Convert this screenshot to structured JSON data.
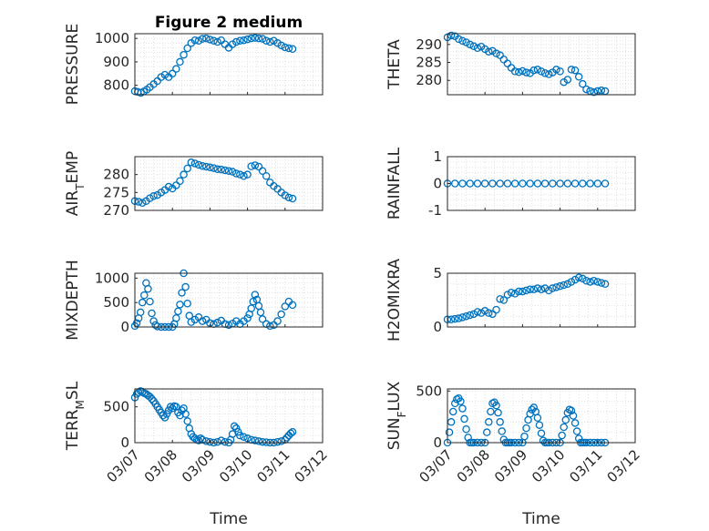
{
  "figure": {
    "title": "Figure 2 medium",
    "xlabel": "Time",
    "marker_color": "#0072BD"
  },
  "chart_data": [
    {
      "type": "scatter",
      "ylabel": "PRESSURE",
      "ylim": [
        760,
        1020
      ],
      "yticks": [
        800,
        900,
        1000
      ],
      "xlim": [
        "03/07",
        "03/12"
      ],
      "x": [
        0.0,
        0.08,
        0.16,
        0.24,
        0.32,
        0.4,
        0.5,
        0.6,
        0.7,
        0.8,
        0.9,
        1.0,
        1.1,
        1.2,
        1.3,
        1.4,
        1.5,
        1.6,
        1.7,
        1.8,
        1.9,
        2.0,
        2.1,
        2.2,
        2.3,
        2.4,
        2.5,
        2.6,
        2.7,
        2.8,
        2.9,
        3.0,
        3.1,
        3.2,
        3.3,
        3.4,
        3.5,
        3.6,
        3.7,
        3.8,
        3.9,
        4.0,
        4.1,
        4.2
      ],
      "y": [
        775,
        772,
        768,
        774,
        782,
        792,
        805,
        818,
        835,
        845,
        835,
        850,
        870,
        900,
        930,
        958,
        980,
        992,
        990,
        998,
        1000,
        995,
        990,
        985,
        992,
        975,
        960,
        975,
        985,
        990,
        992,
        996,
        1000,
        1002,
        1000,
        998,
        990,
        985,
        990,
        980,
        970,
        962,
        958,
        955
      ]
    },
    {
      "type": "scatter",
      "ylabel": "THETA",
      "ylim": [
        276,
        293
      ],
      "yticks": [
        280,
        285,
        290
      ],
      "xlim": [
        "03/07",
        "03/12"
      ],
      "x": [
        0.0,
        0.1,
        0.2,
        0.3,
        0.4,
        0.5,
        0.6,
        0.7,
        0.8,
        0.9,
        1.0,
        1.1,
        1.2,
        1.3,
        1.4,
        1.5,
        1.6,
        1.7,
        1.8,
        1.9,
        2.0,
        2.1,
        2.2,
        2.3,
        2.4,
        2.5,
        2.6,
        2.7,
        2.8,
        2.9,
        3.0,
        3.1,
        3.2,
        3.3,
        3.4,
        3.5,
        3.6,
        3.7,
        3.8,
        3.9,
        4.0,
        4.1,
        4.2
      ],
      "y": [
        292,
        292.5,
        292.3,
        291.5,
        291,
        290.6,
        290,
        289.5,
        289,
        289.4,
        288.7,
        288,
        288.2,
        287.5,
        287,
        285.8,
        284.7,
        283.5,
        282.5,
        282.3,
        282.6,
        282.2,
        282,
        282.8,
        283,
        282.5,
        282,
        281.7,
        282.2,
        283,
        282.5,
        279.5,
        280.2,
        283,
        282.8,
        281,
        279,
        277.5,
        277,
        276.7,
        277,
        277.2,
        277
      ]
    },
    {
      "type": "scatter",
      "ylabel": "AIR_TEMP",
      "ylim": [
        270,
        285
      ],
      "yticks": [
        270,
        275,
        280
      ],
      "xlim": [
        "03/07",
        "03/12"
      ],
      "x": [
        0.0,
        0.1,
        0.2,
        0.3,
        0.4,
        0.5,
        0.6,
        0.7,
        0.8,
        0.9,
        1.0,
        1.1,
        1.2,
        1.3,
        1.4,
        1.5,
        1.6,
        1.7,
        1.8,
        1.9,
        2.0,
        2.1,
        2.2,
        2.3,
        2.4,
        2.5,
        2.6,
        2.7,
        2.8,
        2.9,
        3.0,
        3.1,
        3.2,
        3.3,
        3.4,
        3.5,
        3.6,
        3.7,
        3.8,
        3.9,
        4.0,
        4.1,
        4.2
      ],
      "y": [
        272.6,
        272.4,
        272.1,
        272.6,
        273.4,
        274,
        274.3,
        275,
        275.7,
        276.6,
        276.1,
        277,
        278.2,
        280,
        281.7,
        283.4,
        283.1,
        282.7,
        282.4,
        282.2,
        282,
        281.8,
        281.5,
        281.4,
        281.2,
        281,
        280.8,
        280.3,
        280,
        279.6,
        280,
        282.3,
        282.6,
        282.2,
        281,
        279.6,
        277.8,
        276.8,
        276,
        275,
        274.2,
        273.6,
        273.3
      ]
    },
    {
      "type": "scatter",
      "ylabel": "RAINFALL",
      "ylim": [
        -1,
        1
      ],
      "yticks": [
        -1,
        0,
        1
      ],
      "xlim": [
        "03/07",
        "03/12"
      ],
      "x": [
        0.0,
        0.2,
        0.4,
        0.6,
        0.8,
        1.0,
        1.2,
        1.4,
        1.6,
        1.8,
        2.0,
        2.2,
        2.4,
        2.6,
        2.8,
        3.0,
        3.2,
        3.4,
        3.6,
        3.8,
        4.0,
        4.2
      ],
      "y": [
        0,
        0,
        0,
        0,
        0,
        0,
        0,
        0,
        0,
        0,
        0,
        0,
        0,
        0,
        0,
        0,
        0,
        0,
        0,
        0,
        0,
        0
      ]
    },
    {
      "type": "scatter",
      "ylabel": "MIXDEPTH",
      "ylim": [
        0,
        1100
      ],
      "yticks": [
        0,
        500,
        1000
      ],
      "xlim": [
        "03/07",
        "03/12"
      ],
      "x": [
        0.0,
        0.05,
        0.1,
        0.15,
        0.2,
        0.25,
        0.3,
        0.35,
        0.4,
        0.45,
        0.5,
        0.55,
        0.6,
        0.7,
        0.8,
        0.9,
        1.0,
        1.05,
        1.1,
        1.15,
        1.2,
        1.25,
        1.3,
        1.35,
        1.4,
        1.45,
        1.5,
        1.6,
        1.7,
        1.8,
        1.9,
        2.0,
        2.1,
        2.2,
        2.3,
        2.4,
        2.5,
        2.6,
        2.7,
        2.8,
        2.9,
        3.0,
        3.05,
        3.1,
        3.15,
        3.2,
        3.25,
        3.3,
        3.35,
        3.4,
        3.5,
        3.6,
        3.7,
        3.8,
        3.9,
        4.0,
        4.1,
        4.2
      ],
      "y": [
        20,
        80,
        180,
        300,
        500,
        650,
        900,
        780,
        520,
        280,
        120,
        40,
        10,
        0,
        0,
        0,
        0,
        60,
        180,
        320,
        460,
        700,
        1100,
        820,
        480,
        230,
        100,
        150,
        200,
        120,
        150,
        80,
        60,
        90,
        130,
        60,
        40,
        70,
        120,
        60,
        120,
        180,
        260,
        380,
        520,
        660,
        560,
        430,
        300,
        160,
        60,
        20,
        40,
        120,
        260,
        420,
        520,
        450
      ]
    },
    {
      "type": "scatter",
      "ylabel": "H2OMIXRA",
      "ylim": [
        0,
        5
      ],
      "yticks": [
        0,
        5
      ],
      "xlim": [
        "03/07",
        "03/12"
      ],
      "x": [
        0.0,
        0.1,
        0.2,
        0.3,
        0.4,
        0.5,
        0.6,
        0.7,
        0.8,
        0.9,
        1.0,
        1.1,
        1.2,
        1.3,
        1.4,
        1.5,
        1.6,
        1.7,
        1.8,
        1.9,
        2.0,
        2.1,
        2.2,
        2.3,
        2.4,
        2.5,
        2.6,
        2.7,
        2.8,
        2.9,
        3.0,
        3.1,
        3.2,
        3.3,
        3.4,
        3.5,
        3.6,
        3.7,
        3.8,
        3.9,
        4.0,
        4.1,
        4.2
      ],
      "y": [
        0.7,
        0.7,
        0.75,
        0.8,
        0.9,
        1.0,
        1.1,
        1.2,
        1.4,
        1.3,
        1.5,
        1.3,
        1.2,
        1.6,
        2.6,
        2.5,
        3.0,
        3.2,
        3.1,
        3.3,
        3.3,
        3.4,
        3.5,
        3.5,
        3.6,
        3.5,
        3.6,
        3.4,
        3.6,
        3.7,
        3.8,
        3.9,
        4.0,
        4.2,
        4.4,
        4.6,
        4.5,
        4.3,
        4.2,
        4.3,
        4.2,
        4.1,
        4.0
      ]
    },
    {
      "type": "scatter",
      "ylabel": "TERR_MSL",
      "ylim": [
        0,
        750
      ],
      "yticks": [
        0,
        500
      ],
      "xlim": [
        "03/07",
        "03/12"
      ],
      "x": [
        0.0,
        0.05,
        0.1,
        0.15,
        0.2,
        0.25,
        0.3,
        0.35,
        0.4,
        0.45,
        0.5,
        0.55,
        0.6,
        0.65,
        0.7,
        0.75,
        0.8,
        0.85,
        0.9,
        0.95,
        1.0,
        1.05,
        1.1,
        1.15,
        1.2,
        1.25,
        1.3,
        1.35,
        1.4,
        1.45,
        1.5,
        1.55,
        1.6,
        1.65,
        1.7,
        1.75,
        1.8,
        1.9,
        2.0,
        2.1,
        2.2,
        2.3,
        2.4,
        2.5,
        2.55,
        2.6,
        2.65,
        2.7,
        2.75,
        2.8,
        2.9,
        3.0,
        3.1,
        3.2,
        3.3,
        3.4,
        3.5,
        3.6,
        3.7,
        3.8,
        3.9,
        4.0,
        4.05,
        4.1,
        4.15,
        4.2
      ],
      "y": [
        630,
        680,
        700,
        720,
        710,
        690,
        680,
        660,
        640,
        610,
        580,
        540,
        500,
        460,
        420,
        380,
        350,
        400,
        450,
        500,
        480,
        510,
        500,
        420,
        380,
        450,
        480,
        400,
        300,
        200,
        120,
        80,
        60,
        40,
        30,
        60,
        40,
        20,
        10,
        0,
        10,
        30,
        10,
        0,
        40,
        120,
        230,
        200,
        150,
        100,
        80,
        60,
        40,
        30,
        20,
        10,
        5,
        0,
        0,
        10,
        20,
        40,
        70,
        100,
        130,
        150
      ]
    },
    {
      "type": "scatter",
      "ylabel": "SUN_FLUX",
      "ylim": [
        0,
        520
      ],
      "yticks": [
        0,
        500
      ],
      "xlim": [
        "03/07",
        "03/12"
      ],
      "x": [
        0.0,
        0.05,
        0.1,
        0.15,
        0.2,
        0.25,
        0.3,
        0.35,
        0.4,
        0.45,
        0.5,
        0.55,
        0.6,
        0.65,
        0.7,
        0.8,
        0.9,
        1.0,
        1.05,
        1.1,
        1.15,
        1.2,
        1.25,
        1.3,
        1.35,
        1.4,
        1.45,
        1.5,
        1.55,
        1.6,
        1.65,
        1.7,
        1.8,
        1.9,
        2.0,
        2.05,
        2.1,
        2.15,
        2.2,
        2.25,
        2.3,
        2.35,
        2.4,
        2.45,
        2.5,
        2.55,
        2.6,
        2.65,
        2.7,
        2.8,
        2.9,
        3.0,
        3.05,
        3.1,
        3.15,
        3.2,
        3.25,
        3.3,
        3.35,
        3.4,
        3.45,
        3.5,
        3.55,
        3.6,
        3.65,
        3.7,
        3.8,
        3.9,
        4.0,
        4.1,
        4.2
      ],
      "y": [
        0,
        100,
        200,
        300,
        380,
        420,
        430,
        400,
        330,
        230,
        130,
        50,
        0,
        0,
        0,
        0,
        0,
        0,
        100,
        200,
        300,
        380,
        390,
        360,
        290,
        200,
        110,
        30,
        0,
        0,
        0,
        0,
        0,
        0,
        0,
        60,
        140,
        220,
        280,
        320,
        340,
        300,
        240,
        170,
        90,
        20,
        0,
        0,
        0,
        0,
        0,
        0,
        70,
        150,
        220,
        290,
        320,
        310,
        260,
        190,
        110,
        40,
        0,
        0,
        0,
        0,
        0,
        0,
        0,
        0,
        0
      ]
    }
  ],
  "axes_text": {
    "ylabels": [
      "PRESSURE",
      "THETA",
      "AIR_TEMP",
      "RAINFALL",
      "MIXDEPTH",
      "H2OMIXRA",
      "TERR_MSL",
      "SUN_FLUX"
    ],
    "xticklabels": [
      "03/07",
      "03/08",
      "03/09",
      "03/10",
      "03/11",
      "03/12"
    ]
  }
}
